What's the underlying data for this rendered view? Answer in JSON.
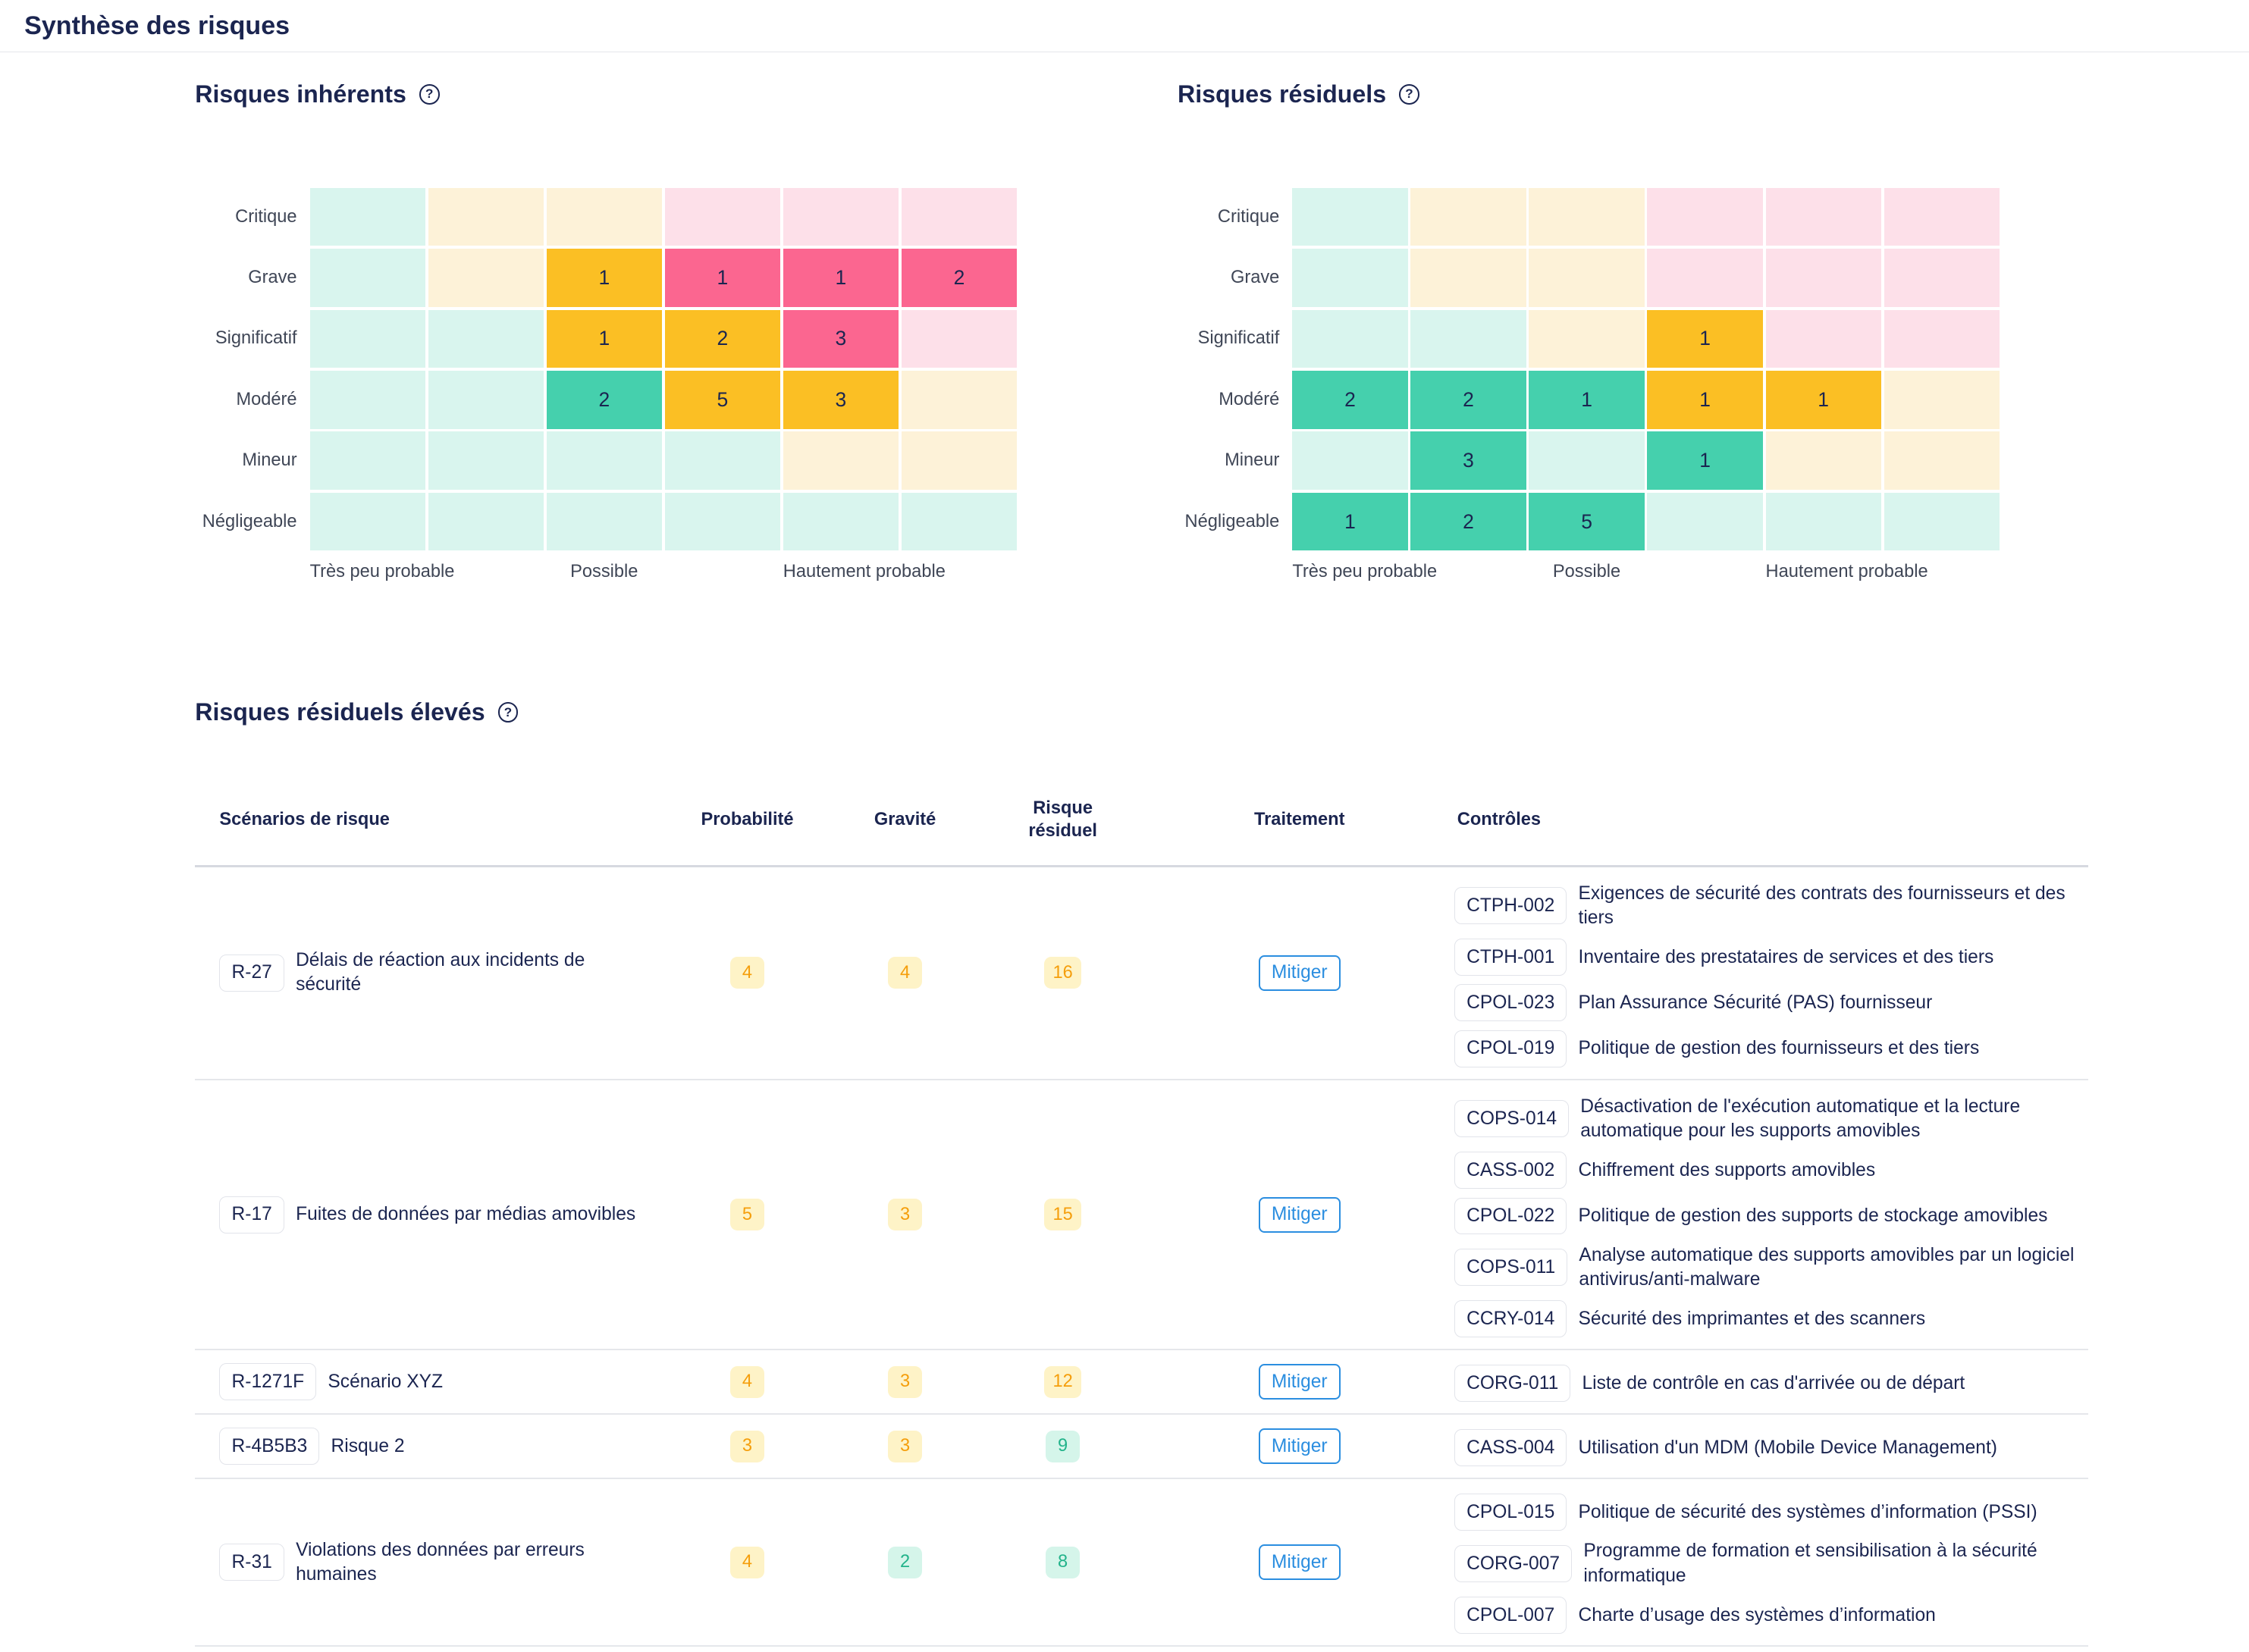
{
  "page_title": "Synthèse des risques",
  "colors": {
    "zone_light": {
      "g": "#d9f5ee",
      "y": "#fdf2d8",
      "p": "#fde0e9"
    },
    "zone_strong": {
      "g": "#45d0ad",
      "y": "#fbbf24",
      "p": "#fb6690"
    }
  },
  "zones": [
    [
      "g",
      "y",
      "y",
      "p",
      "p",
      "p"
    ],
    [
      "g",
      "y",
      "y",
      "p",
      "p",
      "p"
    ],
    [
      "g",
      "g",
      "y",
      "y",
      "p",
      "p"
    ],
    [
      "g",
      "g",
      "g",
      "y",
      "y",
      "y"
    ],
    [
      "g",
      "g",
      "g",
      "g",
      "y",
      "y"
    ],
    [
      "g",
      "g",
      "g",
      "g",
      "g",
      "g"
    ]
  ],
  "row_labels": [
    "Critique",
    "Grave",
    "Significatif",
    "Modéré",
    "Mineur",
    "Négligeable"
  ],
  "col_labels": [
    "Très peu probable",
    "",
    "Possible",
    "",
    "Hautement probable",
    ""
  ],
  "inherent": {
    "title": "Risques inhérents",
    "counts": [
      [
        null,
        null,
        null,
        null,
        null,
        null
      ],
      [
        null,
        null,
        1,
        1,
        1,
        2
      ],
      [
        null,
        null,
        1,
        2,
        3,
        null
      ],
      [
        null,
        null,
        2,
        5,
        3,
        null
      ],
      [
        null,
        null,
        null,
        null,
        null,
        null
      ],
      [
        null,
        null,
        null,
        null,
        null,
        null
      ]
    ]
  },
  "residual": {
    "title": "Risques résiduels",
    "counts": [
      [
        null,
        null,
        null,
        null,
        null,
        null
      ],
      [
        null,
        null,
        null,
        null,
        null,
        null
      ],
      [
        null,
        null,
        null,
        1,
        null,
        null
      ],
      [
        2,
        2,
        1,
        1,
        1,
        null
      ],
      [
        null,
        3,
        null,
        1,
        null,
        null
      ],
      [
        1,
        2,
        5,
        null,
        null,
        null
      ]
    ]
  },
  "high_risks": {
    "title": "Risques résiduels élevés",
    "headers": [
      "Scénarios de risque",
      "Probabilité",
      "Gravité",
      "Risque résiduel",
      "Traitement",
      "Contrôles"
    ],
    "rows": [
      {
        "id": "R-27",
        "name": "Délais de réaction aux incidents de sécurité",
        "probability": "4",
        "severity": "4",
        "residual": "16",
        "treatment": "Mitiger",
        "controls": [
          [
            "CTPH-002",
            "Exigences de sécurité des contrats des fournisseurs et des tiers"
          ],
          [
            "CTPH-001",
            "Inventaire des prestataires de services et des tiers"
          ],
          [
            "CPOL-023",
            "Plan Assurance Sécurité (PAS) fournisseur"
          ],
          [
            "CPOL-019",
            "Politique de gestion des fournisseurs et des tiers"
          ]
        ]
      },
      {
        "id": "R-17",
        "name": "Fuites de données par médias amovibles",
        "probability": "5",
        "severity": "3",
        "residual": "15",
        "treatment": "Mitiger",
        "controls": [
          [
            "COPS-014",
            "Désactivation de l'exécution automatique et la lecture automatique pour les supports amovibles"
          ],
          [
            "CASS-002",
            "Chiffrement des supports amovibles"
          ],
          [
            "CPOL-022",
            "Politique de gestion des supports de stockage amovibles"
          ],
          [
            "COPS-011",
            "Analyse automatique des supports amovibles par un logiciel antivirus/anti-malware"
          ],
          [
            "CCRY-014",
            "Sécurité des imprimantes et des scanners"
          ]
        ]
      },
      {
        "id": "R-1271F",
        "name": "Scénario XYZ",
        "probability": "4",
        "severity": "3",
        "residual": "12",
        "treatment": "Mitiger",
        "controls": [
          [
            "CORG-011",
            "Liste de contrôle en cas d'arrivée ou de départ"
          ]
        ]
      },
      {
        "id": "R-4B5B3",
        "name": "Risque 2",
        "probability": "3",
        "severity": "3",
        "residual": "9",
        "treatment": "Mitiger",
        "controls": [
          [
            "CASS-004",
            "Utilisation d'un MDM (Mobile Device Management)"
          ]
        ]
      },
      {
        "id": "R-31",
        "name": "Violations des données par erreurs humaines",
        "probability": "4",
        "severity": "2",
        "residual": "8",
        "treatment": "Mitiger",
        "controls": [
          [
            "CPOL-015",
            "Politique de sécurité des systèmes d’information (PSSI)"
          ],
          [
            "CORG-007",
            "Programme de formation et sensibilisation à la sécurité informatique"
          ],
          [
            "CPOL-007",
            "Charte d’usage des systèmes d’information"
          ]
        ]
      }
    ]
  }
}
